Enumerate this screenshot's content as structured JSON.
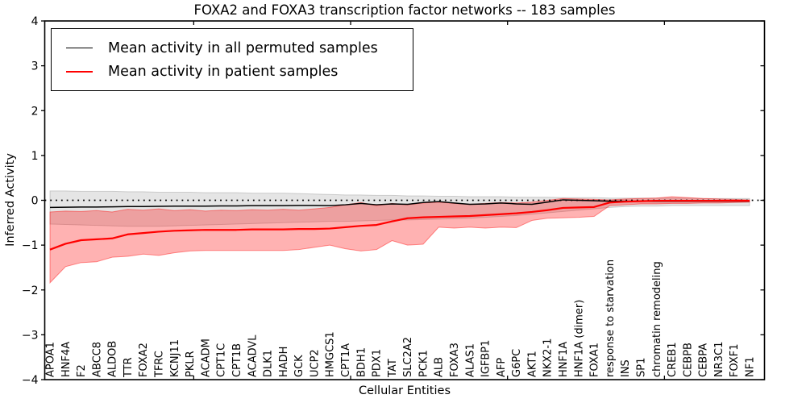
{
  "figure": {
    "title": "FOXA2 and FOXA3 transcription factor networks -- 183 samples",
    "xlabel": "Cellular Entities",
    "ylabel": "Inferred Activity"
  },
  "chart_data": {
    "type": "line",
    "title": "FOXA2 and FOXA3 transcription factor networks -- 183 samples",
    "xlabel": "Cellular Entities",
    "ylabel": "Inferred Activity",
    "ylim": [
      -4,
      4
    ],
    "yticks": [
      4,
      3,
      2,
      1,
      0,
      -1,
      -2,
      -3,
      -4
    ],
    "ytick_labels": [
      "4",
      "3",
      "2",
      "1",
      "0",
      "−1",
      "−2",
      "−3",
      "−4"
    ],
    "grid": false,
    "zero_line": {
      "value": 0,
      "style": "dotted",
      "color": "#000000"
    },
    "legend": {
      "position": "upper left",
      "entries": [
        {
          "label": "Mean activity in all permuted samples",
          "color": "#000000"
        },
        {
          "label": "Mean activity in patient samples",
          "color": "#ff0000"
        }
      ]
    },
    "categories": [
      "APOA1",
      "HNF4A",
      "F2",
      "ABCC8",
      "ALDOB",
      "TTR",
      "FOXA2",
      "TFRC",
      "KCNJ11",
      "PKLR",
      "ACADM",
      "CPT1C",
      "CPT1B",
      "ACADVL",
      "DLK1",
      "HADH",
      "GCK",
      "UCP2",
      "HMGCS1",
      "CPT1A",
      "BDH1",
      "PDX1",
      "TAT",
      "SLC2A2",
      "PCK1",
      "ALB",
      "FOXA3",
      "ALAS1",
      "IGFBP1",
      "AFP",
      "G6PC",
      "AKT1",
      "NKX2-1",
      "HNF1A",
      "HNF1A (dimer)",
      "FOXA1",
      "response to starvation",
      "INS",
      "SP1",
      "chromatin remodeling",
      "CREB1",
      "CEBPB",
      "CEBPA",
      "NR3C1",
      "FOXF1",
      "NF1"
    ],
    "series": [
      {
        "name": "Mean activity in all permuted samples",
        "color": "#000000",
        "line_width": 1.5,
        "values": [
          -0.16,
          -0.155,
          -0.15,
          -0.15,
          -0.145,
          -0.14,
          -0.14,
          -0.135,
          -0.13,
          -0.13,
          -0.13,
          -0.125,
          -0.125,
          -0.12,
          -0.12,
          -0.12,
          -0.115,
          -0.115,
          -0.12,
          -0.1,
          -0.07,
          -0.1,
          -0.08,
          -0.09,
          -0.05,
          -0.03,
          -0.06,
          -0.09,
          -0.08,
          -0.06,
          -0.08,
          -0.09,
          -0.04,
          0.01,
          0.0,
          -0.01,
          -0.02,
          -0.02,
          -0.02,
          -0.02,
          -0.02,
          -0.02,
          -0.02,
          -0.02,
          -0.02,
          -0.02
        ],
        "band": {
          "top": [
            0.21,
            0.21,
            0.2,
            0.2,
            0.2,
            0.19,
            0.19,
            0.18,
            0.18,
            0.18,
            0.17,
            0.17,
            0.17,
            0.16,
            0.16,
            0.16,
            0.15,
            0.14,
            0.13,
            0.12,
            0.12,
            0.11,
            0.11,
            0.1,
            0.1,
            0.09,
            0.09,
            0.08,
            0.08,
            0.08,
            0.07,
            0.07,
            0.07,
            0.06,
            0.06,
            0.06,
            0.05,
            0.05,
            0.05,
            0.05,
            0.05,
            0.05,
            0.04,
            0.04,
            0.04,
            0.04
          ],
          "bottom": [
            -0.53,
            -0.54,
            -0.55,
            -0.56,
            -0.57,
            -0.58,
            -0.58,
            -0.58,
            -0.57,
            -0.56,
            -0.55,
            -0.54,
            -0.53,
            -0.52,
            -0.51,
            -0.5,
            -0.49,
            -0.48,
            -0.47,
            -0.47,
            -0.46,
            -0.45,
            -0.44,
            -0.44,
            -0.43,
            -0.42,
            -0.41,
            -0.4,
            -0.38,
            -0.36,
            -0.34,
            -0.31,
            -0.28,
            -0.25,
            -0.22,
            -0.19,
            -0.16,
            -0.14,
            -0.13,
            -0.13,
            -0.12,
            -0.12,
            -0.12,
            -0.12,
            -0.12,
            -0.12
          ],
          "fill": "rgba(0,0,0,0.10)",
          "edge": "rgba(0,0,0,0.16)"
        }
      },
      {
        "name": "Mean activity in patient samples",
        "color": "#ff0000",
        "line_width": 2.2,
        "values": [
          -1.1,
          -0.97,
          -0.89,
          -0.87,
          -0.85,
          -0.76,
          -0.73,
          -0.7,
          -0.68,
          -0.67,
          -0.66,
          -0.66,
          -0.66,
          -0.65,
          -0.65,
          -0.65,
          -0.64,
          -0.64,
          -0.63,
          -0.6,
          -0.57,
          -0.55,
          -0.47,
          -0.4,
          -0.38,
          -0.37,
          -0.36,
          -0.35,
          -0.33,
          -0.31,
          -0.29,
          -0.26,
          -0.22,
          -0.17,
          -0.16,
          -0.15,
          -0.05,
          -0.03,
          -0.02,
          -0.01,
          -0.01,
          -0.01,
          -0.01,
          -0.01,
          -0.01,
          -0.01
        ],
        "band": {
          "top": [
            -0.26,
            -0.24,
            -0.25,
            -0.23,
            -0.26,
            -0.2,
            -0.22,
            -0.19,
            -0.23,
            -0.21,
            -0.24,
            -0.22,
            -0.23,
            -0.21,
            -0.22,
            -0.2,
            -0.22,
            -0.19,
            -0.16,
            -0.1,
            -0.05,
            -0.12,
            -0.07,
            -0.1,
            -0.06,
            -0.04,
            -0.07,
            -0.09,
            -0.07,
            -0.05,
            -0.06,
            -0.04,
            0.0,
            0.04,
            0.03,
            0.02,
            0.01,
            0.03,
            0.04,
            0.05,
            0.08,
            0.06,
            0.04,
            0.03,
            0.02,
            0.01
          ],
          "bottom": [
            -1.84,
            -1.48,
            -1.39,
            -1.37,
            -1.27,
            -1.25,
            -1.2,
            -1.23,
            -1.17,
            -1.13,
            -1.12,
            -1.12,
            -1.12,
            -1.12,
            -1.12,
            -1.12,
            -1.1,
            -1.05,
            -1.0,
            -1.08,
            -1.13,
            -1.1,
            -0.9,
            -1.0,
            -0.98,
            -0.6,
            -0.62,
            -0.6,
            -0.62,
            -0.6,
            -0.61,
            -0.45,
            -0.4,
            -0.39,
            -0.38,
            -0.36,
            -0.12,
            -0.1,
            -0.08,
            -0.08,
            -0.07,
            -0.07,
            -0.06,
            -0.06,
            -0.05,
            -0.04
          ],
          "fill": "rgba(255,0,0,0.30)",
          "edge": "rgba(255,0,0,0.42)"
        }
      }
    ]
  }
}
